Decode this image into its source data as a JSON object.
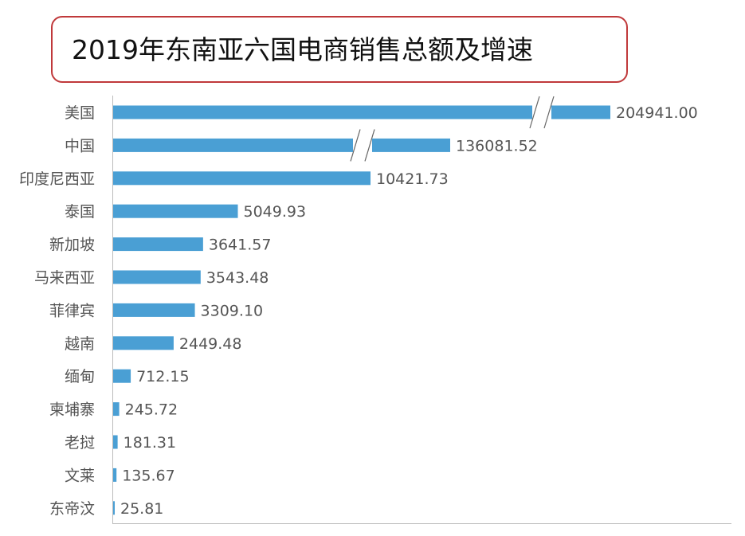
{
  "title": "2019年东南亚六国电商销售总额及增速",
  "chart_data": {
    "type": "bar",
    "orientation": "horizontal",
    "axis_break": true,
    "title": "2019年东南亚六国电商销售总额及增速",
    "categories": [
      "美国",
      "中国",
      "印度尼西亚",
      "泰国",
      "新加坡",
      "马来西亚",
      "菲律宾",
      "越南",
      "缅甸",
      "柬埔寨",
      "老挝",
      "文莱",
      "东帝汶"
    ],
    "values": [
      204941.0,
      136081.52,
      10421.73,
      5049.93,
      3641.57,
      3543.48,
      3309.1,
      2449.48,
      712.15,
      245.72,
      181.31,
      135.67,
      25.81
    ],
    "value_labels": [
      "204941.00",
      "136081.52",
      "10421.73",
      "5049.93",
      "3641.57",
      "3543.48",
      "3309.10",
      "2449.48",
      "712.15",
      "245.72",
      "181.31",
      "135.67",
      "25.81"
    ],
    "broken_categories": [
      "美国",
      "中国"
    ],
    "bar_color": "#4a9fd4",
    "label_color": "#555555",
    "break_mark_color": "#666666",
    "grid": false,
    "legend": "none"
  }
}
